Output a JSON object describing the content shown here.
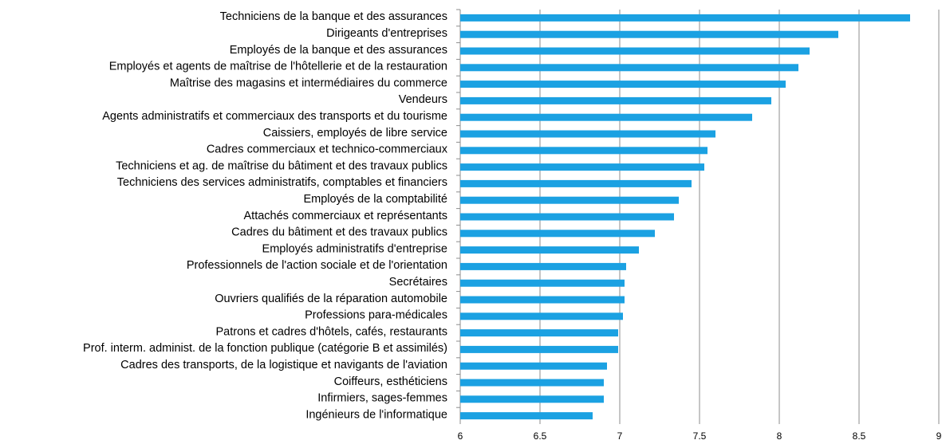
{
  "chart_data": {
    "type": "bar",
    "orientation": "horizontal",
    "color": "#1ba1e2",
    "grid": true,
    "categories": [
      "Techniciens de la banque et des assurances",
      "Dirigeants d'entreprises",
      "Employés de la banque et des assurances",
      "Employés et agents de maîtrise de l'hôtellerie et de la restauration",
      "Maîtrise des magasins et intermédiaires du commerce",
      "Vendeurs",
      "Agents administratifs et commerciaux des transports et du tourisme",
      "Caissiers, employés de libre service",
      "Cadres commerciaux et technico-commerciaux",
      "Techniciens et ag. de maîtrise du bâtiment et des travaux publics",
      "Techniciens des services administratifs, comptables et financiers",
      "Employés de la comptabilité",
      "Attachés commerciaux et représentants",
      "Cadres du bâtiment et des travaux publics",
      "Employés administratifs d'entreprise",
      "Professionnels de l'action sociale et de l'orientation",
      "Secrétaires",
      "Ouvriers qualifiés de la réparation automobile",
      "Professions para-médicales",
      "Patrons et cadres d'hôtels, cafés, restaurants",
      "Prof. interm. administ. de la fonction publique (catégorie B et assimilés)",
      "Cadres des transports, de la logistique et navigants de l'aviation",
      "Coiffeurs, esthéticiens",
      "Infirmiers, sages-femmes",
      "Ingénieurs de l'informatique"
    ],
    "values": [
      8.82,
      8.37,
      8.19,
      8.12,
      8.04,
      7.95,
      7.83,
      7.6,
      7.55,
      7.53,
      7.45,
      7.37,
      7.34,
      7.22,
      7.12,
      7.04,
      7.03,
      7.03,
      7.02,
      6.99,
      6.99,
      6.92,
      6.9,
      6.9,
      6.83
    ],
    "xlim": [
      6,
      9
    ],
    "xticks": [
      6,
      6.5,
      7,
      7.5,
      8,
      8.5,
      9
    ]
  }
}
